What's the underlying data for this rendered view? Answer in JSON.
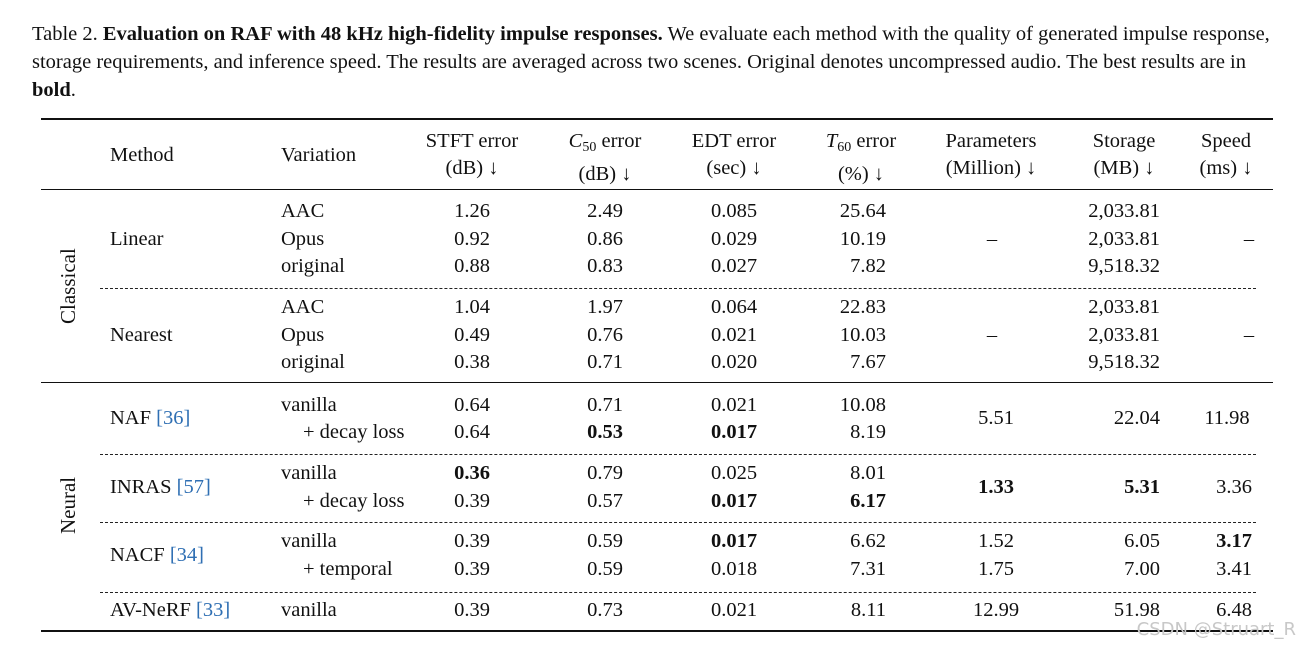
{
  "caption": {
    "label": "Table 2.",
    "bold": "Evaluation on RAF with 48 kHz high-fidelity impulse responses.",
    "text": "We evaluate each method with the quality of generated impulse response, storage requirements, and inference speed. The results are averaged across two scenes. Original denotes uncompressed audio. The best results are in",
    "bold_word": "bold",
    "end": "."
  },
  "headers": {
    "method": "Method",
    "variation": "Variation",
    "stft": [
      "STFT error",
      "(dB) ↓"
    ],
    "c50": [
      "C",
      "50",
      " error",
      "(dB) ↓"
    ],
    "edt": [
      "EDT error",
      "(sec) ↓"
    ],
    "t60": [
      "T",
      "60",
      " error",
      "(%) ↓"
    ],
    "params": [
      "Parameters",
      "(Million) ↓"
    ],
    "storage": [
      "Storage",
      "(MB) ↓"
    ],
    "speed": [
      "Speed",
      "(ms) ↓"
    ]
  },
  "groups": {
    "classical": "Classical",
    "neural": "Neural"
  },
  "classical": [
    {
      "method": "Linear",
      "rows": [
        {
          "variation": "AAC",
          "stft": "1.26",
          "c50": "2.49",
          "edt": "0.085",
          "t60": "25.64",
          "storage": "2,033.81"
        },
        {
          "variation": "Opus",
          "stft": "0.92",
          "c50": "0.86",
          "edt": "0.029",
          "t60": "10.19",
          "storage": "2,033.81"
        },
        {
          "variation": "original",
          "stft": "0.88",
          "c50": "0.83",
          "edt": "0.027",
          "t60": "7.82",
          "storage": "9,518.32"
        }
      ],
      "params": "–",
      "speed": "–"
    },
    {
      "method": "Nearest",
      "rows": [
        {
          "variation": "AAC",
          "stft": "1.04",
          "c50": "1.97",
          "edt": "0.064",
          "t60": "22.83",
          "storage": "2,033.81"
        },
        {
          "variation": "Opus",
          "stft": "0.49",
          "c50": "0.76",
          "edt": "0.021",
          "t60": "10.03",
          "storage": "2,033.81"
        },
        {
          "variation": "original",
          "stft": "0.38",
          "c50": "0.71",
          "edt": "0.020",
          "t60": "7.67",
          "storage": "9,518.32"
        }
      ],
      "params": "–",
      "speed": "–"
    }
  ],
  "neural": {
    "naf": {
      "method": "NAF",
      "cite": "[36]",
      "r1": {
        "variation": "vanilla",
        "stft": "0.64",
        "c50": "0.71",
        "edt": "0.021",
        "t60": "10.08"
      },
      "r2": {
        "variation": "+ decay loss",
        "stft": "0.64",
        "c50": "0.53",
        "edt": "0.017",
        "t60": "8.19"
      },
      "params": "5.51",
      "storage": "22.04",
      "speed": "11.98"
    },
    "inras": {
      "method": "INRAS",
      "cite": "[57]",
      "r1": {
        "variation": "vanilla",
        "stft": "0.36",
        "c50": "0.79",
        "edt": "0.025",
        "t60": "8.01"
      },
      "r2": {
        "variation": "+ decay loss",
        "stft": "0.39",
        "c50": "0.57",
        "edt": "0.017",
        "t60": "6.17"
      },
      "params": "1.33",
      "storage": "5.31",
      "speed": "3.36"
    },
    "nacf": {
      "method": "NACF",
      "cite": "[34]",
      "r1": {
        "variation": "vanilla",
        "stft": "0.39",
        "c50": "0.59",
        "edt": "0.017",
        "t60": "6.62",
        "params": "1.52",
        "storage": "6.05",
        "speed": "3.17"
      },
      "r2": {
        "variation": "+ temporal",
        "stft": "0.39",
        "c50": "0.59",
        "edt": "0.018",
        "t60": "7.31",
        "params": "1.75",
        "storage": "7.00",
        "speed": "3.41"
      }
    },
    "avnerf": {
      "method": "AV-NeRF",
      "cite": "[33]",
      "r1": {
        "variation": "vanilla",
        "stft": "0.39",
        "c50": "0.73",
        "edt": "0.021",
        "t60": "8.11",
        "params": "12.99",
        "storage": "51.98",
        "speed": "6.48"
      }
    }
  },
  "watermark": "CSDN @Struart_R"
}
